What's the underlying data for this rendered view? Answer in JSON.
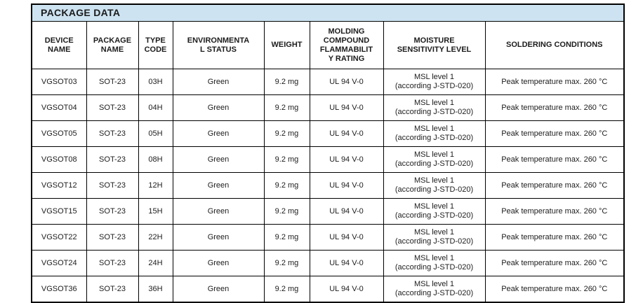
{
  "title": "PACKAGE DATA",
  "colors": {
    "title_background": "#cde3f1",
    "border": "#000000",
    "text": "#1c1c1c",
    "page_background": "#ffffff"
  },
  "table": {
    "columns": [
      {
        "key": "device",
        "label": "DEVICE\nNAME"
      },
      {
        "key": "package",
        "label": "PACKAGE\nNAME"
      },
      {
        "key": "type_code",
        "label": "TYPE\nCODE"
      },
      {
        "key": "env",
        "label": "ENVIRONMENTA\nL STATUS"
      },
      {
        "key": "weight",
        "label": "WEIGHT"
      },
      {
        "key": "molding",
        "label": "MOLDING\nCOMPOUND\nFLAMMABILIT\nY RATING"
      },
      {
        "key": "msl",
        "label": "MOISTURE\nSENSITIVITY LEVEL"
      },
      {
        "key": "soldering",
        "label": "SOLDERING CONDITIONS"
      }
    ],
    "rows": [
      [
        "VGSOT03",
        "SOT-23",
        "03H",
        "Green",
        "9.2 mg",
        "UL 94 V-0",
        "MSL level 1\n(according J-STD-020)",
        "Peak temperature max. 260 °C"
      ],
      [
        "VGSOT04",
        "SOT-23",
        "04H",
        "Green",
        "9.2 mg",
        "UL 94 V-0",
        "MSL level 1\n(according J-STD-020)",
        "Peak temperature max. 260 °C"
      ],
      [
        "VGSOT05",
        "SOT-23",
        "05H",
        "Green",
        "9.2 mg",
        "UL 94 V-0",
        "MSL level 1\n(according J-STD-020)",
        "Peak temperature max. 260 °C"
      ],
      [
        "VGSOT08",
        "SOT-23",
        "08H",
        "Green",
        "9.2 mg",
        "UL 94 V-0",
        "MSL level 1\n(according J-STD-020)",
        "Peak temperature max. 260 °C"
      ],
      [
        "VGSOT12",
        "SOT-23",
        "12H",
        "Green",
        "9.2 mg",
        "UL 94 V-0",
        "MSL level 1\n(according J-STD-020)",
        "Peak temperature max. 260 °C"
      ],
      [
        "VGSOT15",
        "SOT-23",
        "15H",
        "Green",
        "9.2 mg",
        "UL 94 V-0",
        "MSL level 1\n(according J-STD-020)",
        "Peak temperature max. 260 °C"
      ],
      [
        "VGSOT22",
        "SOT-23",
        "22H",
        "Green",
        "9.2 mg",
        "UL 94 V-0",
        "MSL level 1\n(according J-STD-020)",
        "Peak temperature max. 260 °C"
      ],
      [
        "VGSOT24",
        "SOT-23",
        "24H",
        "Green",
        "9.2 mg",
        "UL 94 V-0",
        "MSL level 1\n(according J-STD-020)",
        "Peak temperature max. 260 °C"
      ],
      [
        "VGSOT36",
        "SOT-23",
        "36H",
        "Green",
        "9.2 mg",
        "UL 94 V-0",
        "MSL level 1\n(according J-STD-020)",
        "Peak temperature max. 260 °C"
      ]
    ]
  }
}
